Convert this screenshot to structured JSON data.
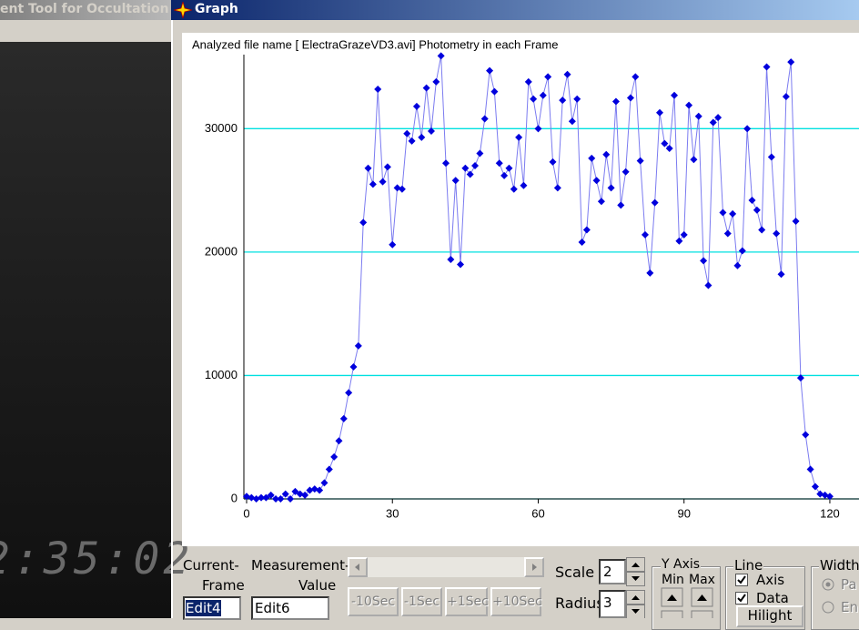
{
  "window": {
    "background_title": "ent Tool for Occultation O",
    "title": "Graph",
    "video_timestamp": "2:35:02"
  },
  "chart_data": {
    "type": "line",
    "title": "Analyzed file name [ ElectraGrazeVD3.avi]   Photometry in each Frame",
    "x": [
      0,
      1,
      2,
      3,
      4,
      5,
      6,
      7,
      8,
      9,
      10,
      11,
      12,
      13,
      14,
      15,
      16,
      17,
      18,
      19,
      20,
      21,
      22,
      23,
      24,
      25,
      26,
      27,
      28,
      29,
      30,
      31,
      32,
      33,
      34,
      35,
      36,
      37,
      38,
      39,
      40,
      41,
      42,
      43,
      44,
      45,
      46,
      47,
      48,
      49,
      50,
      51,
      52,
      53,
      54,
      55,
      56,
      57,
      58,
      59,
      60,
      61,
      62,
      63,
      64,
      65,
      66,
      67,
      68,
      69,
      70,
      71,
      72,
      73,
      74,
      75,
      76,
      77,
      78,
      79,
      80,
      81,
      82,
      83,
      84,
      85,
      86,
      87,
      88,
      89,
      90,
      91,
      92,
      93,
      94,
      95,
      96,
      97,
      98,
      99,
      100,
      101,
      102,
      103,
      104,
      105,
      106,
      107,
      108,
      109,
      110,
      111,
      112,
      113,
      114,
      115,
      116,
      117,
      118,
      119,
      120
    ],
    "series": [
      {
        "color": "#0000dd",
        "line_color": "#7b7bf0",
        "values": [
          200,
          100,
          0,
          100,
          100,
          300,
          0,
          0,
          400,
          0,
          600,
          400,
          300,
          700,
          800,
          700,
          1300,
          2400,
          3400,
          4700,
          6500,
          8600,
          10700,
          12400,
          22400,
          26800,
          25500,
          33200,
          25700,
          26900,
          20600,
          25200,
          25100,
          29600,
          29000,
          31800,
          29300,
          33300,
          29800,
          33800,
          35900,
          27200,
          19400,
          25800,
          19000,
          26800,
          26300,
          27000,
          28000,
          30800,
          34700,
          33000,
          27200,
          26200,
          26800,
          25100,
          29300,
          25400,
          33800,
          32400,
          30000,
          32700,
          34200,
          27300,
          25200,
          32300,
          34400,
          30600,
          32400,
          20800,
          21800,
          27600,
          25800,
          24100,
          27900,
          25200,
          32200,
          23800,
          26500,
          32500,
          34200,
          27400,
          21400,
          18300,
          24000,
          31300,
          28800,
          28400,
          32700,
          20900,
          21400,
          31900,
          27500,
          31000,
          19300,
          17300,
          30500,
          30900,
          23200,
          21500,
          23100,
          18900,
          20100,
          30000,
          24200,
          23400,
          21800,
          35000,
          27700,
          21500,
          18200,
          32600,
          35400,
          22500,
          9800,
          5200,
          2400,
          1000,
          400,
          300,
          200
        ]
      }
    ],
    "xlim": [
      0,
      126
    ],
    "xticks": [
      0,
      30,
      60,
      90,
      120
    ],
    "ylim": [
      0,
      36000
    ],
    "yticks": [
      0,
      10000,
      20000,
      30000
    ],
    "grid": true,
    "grid_color": "#00e0e0"
  },
  "controls": {
    "current_frame_label": [
      "Current-",
      "Frame"
    ],
    "current_frame_edit": "Edit4",
    "measurement_label": [
      "Measurement-",
      "Value"
    ],
    "measurement_edit": "Edit6",
    "buttons": [
      "-10Sec",
      "-1Sec",
      "+1Sec",
      "+10Sec"
    ],
    "scale_label": "Scale",
    "scale_value": "2",
    "radius_label": "Radius",
    "radius_value": "3",
    "y_axis_group": "Y Axis",
    "y_min": "Min",
    "y_max": "Max",
    "line_group": "Line",
    "line_axis": "Axis",
    "line_data": "Data",
    "hilight": "Hilight",
    "width_group": "Width",
    "width_options": [
      "Pa",
      "En"
    ]
  }
}
